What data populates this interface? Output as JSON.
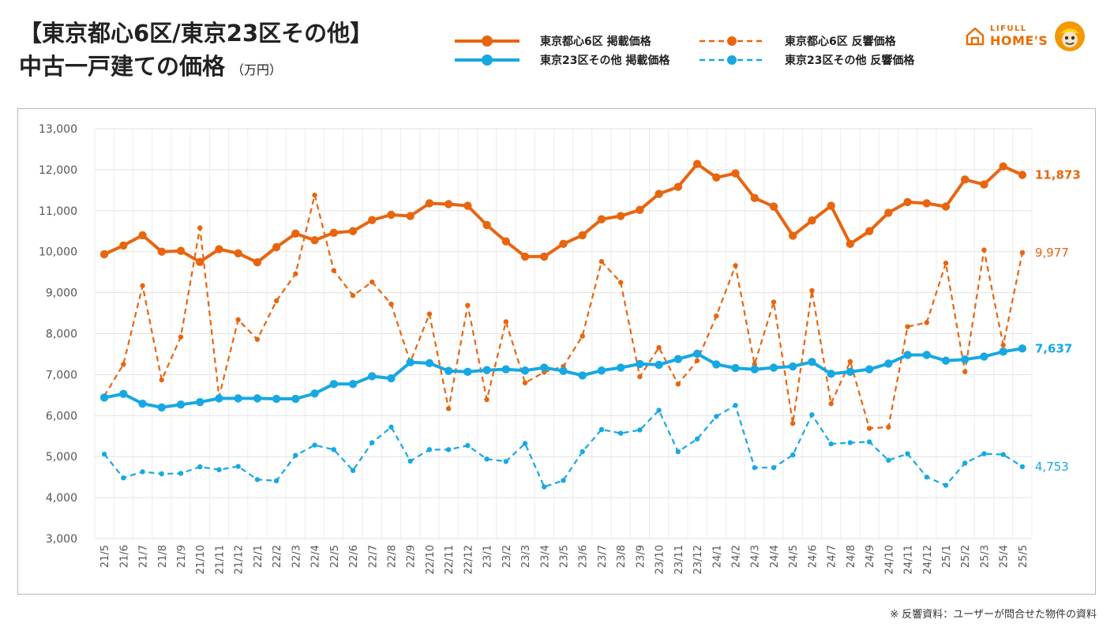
{
  "title": {
    "line1": "【東京都心6区/東京23区その他】",
    "line2": "中古一戸建ての価格",
    "unit": "（万円）"
  },
  "logo": {
    "small_text": "LIFULL",
    "big_text": "HOME'S",
    "house_icon": "house-icon",
    "character_icon": "mascot-face-icon",
    "color": "#ED6C00"
  },
  "footnote": "※ 反響資料：ユーザーが問合せた物件の資料",
  "colors": {
    "orange": "#E8650F",
    "blue": "#17A8E3"
  },
  "chart_data": {
    "type": "line",
    "categories": [
      "21/5",
      "21/6",
      "21/7",
      "21/8",
      "21/9",
      "21/10",
      "21/11",
      "21/12",
      "22/1",
      "22/2",
      "22/3",
      "22/4",
      "22/5",
      "22/6",
      "22/7",
      "22/8",
      "22/9",
      "22/10",
      "22/11",
      "22/12",
      "23/1",
      "23/2",
      "23/3",
      "23/4",
      "23/5",
      "23/6",
      "23/7",
      "23/8",
      "23/9",
      "23/10",
      "23/11",
      "23/12",
      "24/1",
      "24/2",
      "24/3",
      "24/4",
      "24/5",
      "24/6",
      "24/7",
      "24/8",
      "24/9",
      "24/10",
      "24/11",
      "24/12",
      "25/1",
      "25/2",
      "25/3",
      "25/4",
      "25/5"
    ],
    "ylim": [
      3000,
      13000
    ],
    "yticks": [
      3000,
      4000,
      5000,
      6000,
      7000,
      8000,
      9000,
      10000,
      11000,
      12000,
      13000
    ],
    "ytick_labels": [
      "3,000",
      "4,000",
      "5,000",
      "6,000",
      "7,000",
      "8,000",
      "9,000",
      "10,000",
      "11,000",
      "12,000",
      "13,000"
    ],
    "grid": true,
    "legend_position": "top",
    "series": [
      {
        "name": "東京都心6区 掲載価格",
        "color": "#E8650F",
        "style": "solid",
        "end_label": "11,873",
        "values": [
          9937,
          10150,
          10400,
          10000,
          10020,
          9750,
          10060,
          9960,
          9740,
          10110,
          10440,
          10280,
          10460,
          10500,
          10770,
          10900,
          10870,
          11180,
          11160,
          11120,
          10650,
          10250,
          9880,
          9880,
          10190,
          10400,
          10790,
          10870,
          11020,
          11410,
          11580,
          12140,
          11810,
          11910,
          11310,
          11100,
          10390,
          10760,
          11120,
          10190,
          10500,
          10950,
          11210,
          11180,
          11100,
          11760,
          11640,
          12080,
          11873
        ]
      },
      {
        "name": "東京23区その他 掲載価格",
        "color": "#17A8E3",
        "style": "solid",
        "end_label": "7,637",
        "values": [
          6440,
          6530,
          6290,
          6200,
          6270,
          6330,
          6420,
          6420,
          6420,
          6410,
          6410,
          6540,
          6770,
          6770,
          6960,
          6910,
          7300,
          7280,
          7090,
          7070,
          7110,
          7130,
          7100,
          7170,
          7090,
          6980,
          7100,
          7170,
          7260,
          7240,
          7380,
          7510,
          7250,
          7160,
          7130,
          7170,
          7200,
          7310,
          7020,
          7070,
          7130,
          7270,
          7480,
          7480,
          7340,
          7370,
          7440,
          7560,
          7637
        ]
      },
      {
        "name": "東京都心6区 反響価格",
        "color": "#E8650F",
        "style": "dashed",
        "end_label": "9,977",
        "values": [
          6480,
          7250,
          9170,
          6870,
          7920,
          10580,
          6460,
          8340,
          7860,
          8800,
          9460,
          11380,
          9540,
          8930,
          9260,
          8720,
          7300,
          8480,
          6170,
          8690,
          6390,
          8290,
          6800,
          7060,
          7200,
          7940,
          9760,
          9250,
          6950,
          7660,
          6770,
          7340,
          8430,
          9660,
          7250,
          8770,
          5810,
          9050,
          6290,
          7320,
          5690,
          5720,
          8170,
          8270,
          9720,
          7070,
          10040,
          7720,
          9977
        ]
      },
      {
        "name": "東京23区その他 反響価格",
        "color": "#17A8E3",
        "style": "dashed",
        "end_label": "4,753",
        "values": [
          5060,
          4480,
          4630,
          4580,
          4590,
          4750,
          4680,
          4760,
          4440,
          4410,
          5030,
          5280,
          5170,
          4660,
          5340,
          5720,
          4890,
          5170,
          5170,
          5270,
          4940,
          4880,
          5320,
          4260,
          4420,
          5120,
          5660,
          5570,
          5650,
          6130,
          5120,
          5430,
          5980,
          6250,
          4730,
          4730,
          5040,
          6020,
          5310,
          5340,
          5360,
          4910,
          5070,
          4500,
          4300,
          4840,
          5070,
          5050,
          4753
        ]
      }
    ]
  }
}
